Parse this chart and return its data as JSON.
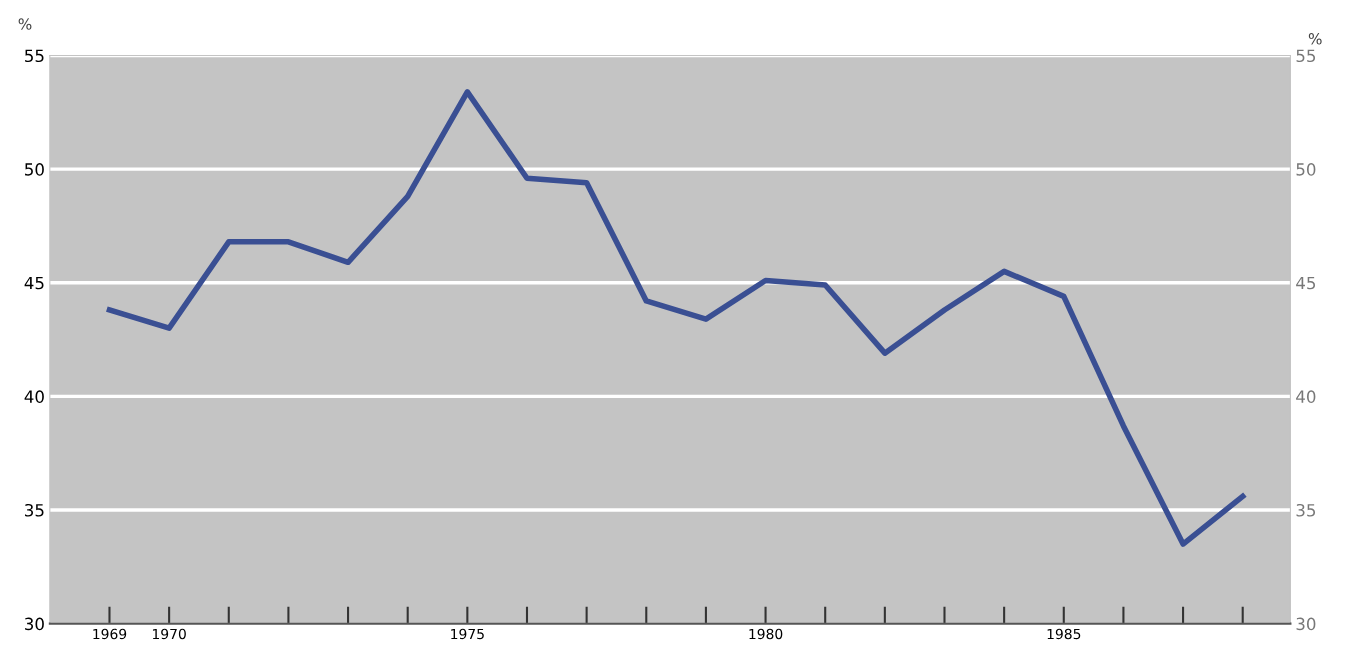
{
  "chart_data": {
    "type": "line",
    "ylabel": "%",
    "y2label": "%",
    "x": [
      1969,
      1970,
      1971,
      1972,
      1973,
      1974,
      1975,
      1976,
      1977,
      1978,
      1979,
      1980,
      1981,
      1982,
      1983,
      1984,
      1985,
      1986,
      1987,
      1988
    ],
    "series": [
      {
        "color": "#3a4f93",
        "values": [
          43.8,
          43.0,
          46.8,
          46.8,
          45.9,
          48.8,
          53.4,
          49.6,
          49.4,
          44.2,
          43.4,
          45.1,
          44.9,
          41.9,
          43.8,
          45.5,
          44.4,
          38.7,
          33.5,
          35.6
        ]
      }
    ],
    "xlim": [
      1968,
      1988.8
    ],
    "xticks": [
      1969,
      1970,
      {
        "value": 1971,
        "label": null
      },
      {
        "value": 1972,
        "label": null
      },
      {
        "value": 1973,
        "label": null
      },
      {
        "value": 1974,
        "label": null
      },
      1975,
      {
        "value": 1976,
        "label": null
      },
      {
        "value": 1977,
        "label": null
      },
      {
        "value": 1978,
        "label": null
      },
      {
        "value": 1979,
        "label": null
      },
      1980,
      {
        "value": 1981,
        "label": null
      },
      {
        "value": 1982,
        "label": null
      },
      {
        "value": 1983,
        "label": null
      },
      {
        "value": 1984,
        "label": null
      },
      1985,
      {
        "value": 1986,
        "label": null
      },
      {
        "value": 1987,
        "label": null
      },
      {
        "value": 1988,
        "label": null
      }
    ],
    "ylim": [
      30,
      55
    ],
    "yticks": [
      30,
      35,
      40,
      45,
      50,
      55
    ],
    "y2lim": [
      30,
      55
    ],
    "y2ticks": [
      30,
      35,
      40,
      45,
      50,
      55
    ],
    "grid": "y",
    "line_style": "solid"
  }
}
